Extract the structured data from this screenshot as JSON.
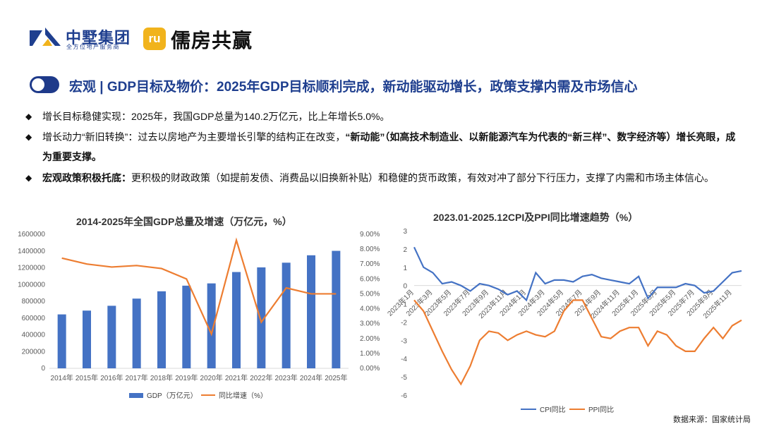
{
  "header": {
    "logo1_name": "中墅集团",
    "logo1_sub": "全方位地产服务商",
    "logo2_mark": "ru",
    "logo2_name": "儒房共赢"
  },
  "title": "宏观 | GDP目标及物价：2025年GDP目标顺利完成，新动能驱动增长，政策支撑内需及市场信心",
  "bullets": {
    "b1": "增长目标稳健实现：2025年，我国GDP总量为140.2万亿元，比上年增长5.0%。",
    "b2_a": "增长动力“新旧转换”：过去以房地产为主要增长引擎的结构正在改变，",
    "b2_b": "“新动能”（如高技术制造业、以新能源汽车为代表的“新三样”、数字经济等）增长亮眼，成为重要支撑。",
    "b3_a": "宏观政策积极托底：",
    "b3_b": "更积极的财政政策（如提前发债、消费品以旧换新补贴）和稳健的货币政策，有效对冲了部分下行压力，支撑了内需和市场主体信心。"
  },
  "source": "数据来源：国家统计局",
  "colors": {
    "bar": "#4472c4",
    "growth": "#ed7d31",
    "cpi": "#4472c4",
    "ppi": "#ed7d31"
  },
  "chart_data": [
    {
      "type": "bar",
      "title": "2014-2025年全国GDP总量及增速（万亿元，%）",
      "categories": [
        "2014年",
        "2015年",
        "2016年",
        "2017年",
        "2018年",
        "2019年",
        "2020年",
        "2021年",
        "2022年",
        "2023年",
        "2024年",
        "2025年"
      ],
      "series": [
        {
          "name": "GDP（万亿元）",
          "axis": "left",
          "type": "bar",
          "values": [
            643563,
            688858,
            746395,
            832036,
            919281,
            986515,
            1013567,
            1149237,
            1204724,
            1260582,
            1349084,
            1402000
          ]
        },
        {
          "name": "同比增速（%）",
          "axis": "right",
          "type": "line",
          "values": [
            7.4,
            7.0,
            6.8,
            6.9,
            6.7,
            6.0,
            2.3,
            8.6,
            3.1,
            5.4,
            5.0,
            5.0
          ]
        }
      ],
      "ylim": [
        0,
        1600000
      ],
      "yticks": [
        "0",
        "200000",
        "400000",
        "600000",
        "800000",
        "1000000",
        "1200000",
        "1400000",
        "1600000"
      ],
      "y2lim": [
        0,
        9
      ],
      "y2ticks": [
        "0.00%",
        "1.00%",
        "2.00%",
        "3.00%",
        "4.00%",
        "5.00%",
        "6.00%",
        "7.00%",
        "8.00%",
        "9.00%"
      ],
      "legend": [
        "GDP（万亿元）",
        "同比增速（%）"
      ]
    },
    {
      "type": "line",
      "title": "2023.01-2025.12CPI及PPI同比增速趋势（%）",
      "categories": [
        "2023年1月",
        "2023年2月",
        "2023年3月",
        "2023年4月",
        "2023年5月",
        "2023年6月",
        "2023年7月",
        "2023年8月",
        "2023年9月",
        "2023年10月",
        "2023年11月",
        "2023年12月",
        "2024年1月",
        "2024年2月",
        "2024年3月",
        "2024年4月",
        "2024年5月",
        "2024年6月",
        "2024年7月",
        "2024年8月",
        "2024年9月",
        "2024年10月",
        "2024年11月",
        "2024年12月",
        "2025年1月",
        "2025年2月",
        "2025年3月",
        "2025年4月",
        "2025年5月",
        "2025年6月",
        "2025年7月",
        "2025年8月",
        "2025年9月",
        "2025年10月",
        "2025年11月",
        "2025年12月"
      ],
      "tick_labels": [
        "2023年1月",
        "2023年3月",
        "2023年5月",
        "2023年7月",
        "2023年9月",
        "2023年11月",
        "2024年1月",
        "2024年3月",
        "2024年5月",
        "2024年7月",
        "2024年9月",
        "2024年11月",
        "2025年1月",
        "2025年3月",
        "2025年5月",
        "2025年7月",
        "2025年9月",
        "2025年11月"
      ],
      "series": [
        {
          "name": "CPI同比",
          "values": [
            2.1,
            1.0,
            0.7,
            0.1,
            0.2,
            0.0,
            -0.3,
            0.1,
            0.0,
            -0.2,
            -0.5,
            -0.3,
            -0.8,
            0.7,
            0.1,
            0.3,
            0.3,
            0.2,
            0.5,
            0.6,
            0.4,
            0.3,
            0.2,
            0.1,
            0.5,
            -0.7,
            -0.1,
            -0.1,
            -0.1,
            0.1,
            0.0,
            -0.4,
            -0.3,
            0.2,
            0.7,
            0.8
          ]
        },
        {
          "name": "PPI同比",
          "values": [
            -0.8,
            -1.4,
            -2.5,
            -3.6,
            -4.6,
            -5.4,
            -4.4,
            -3.0,
            -2.5,
            -2.6,
            -3.0,
            -2.7,
            -2.5,
            -2.7,
            -2.8,
            -2.5,
            -1.4,
            -0.8,
            -0.8,
            -1.8,
            -2.8,
            -2.9,
            -2.5,
            -2.3,
            -2.3,
            -3.3,
            -2.5,
            -2.7,
            -3.3,
            -3.6,
            -3.6,
            -2.9,
            -2.3,
            -2.9,
            -2.2,
            -1.9
          ]
        }
      ],
      "ylim": [
        -6,
        3
      ],
      "yticks": [
        "-6",
        "-5",
        "-4",
        "-3",
        "-2",
        "-1",
        "0",
        "1",
        "2",
        "3"
      ],
      "legend": [
        "CPI同比",
        "PPI同比"
      ]
    }
  ]
}
